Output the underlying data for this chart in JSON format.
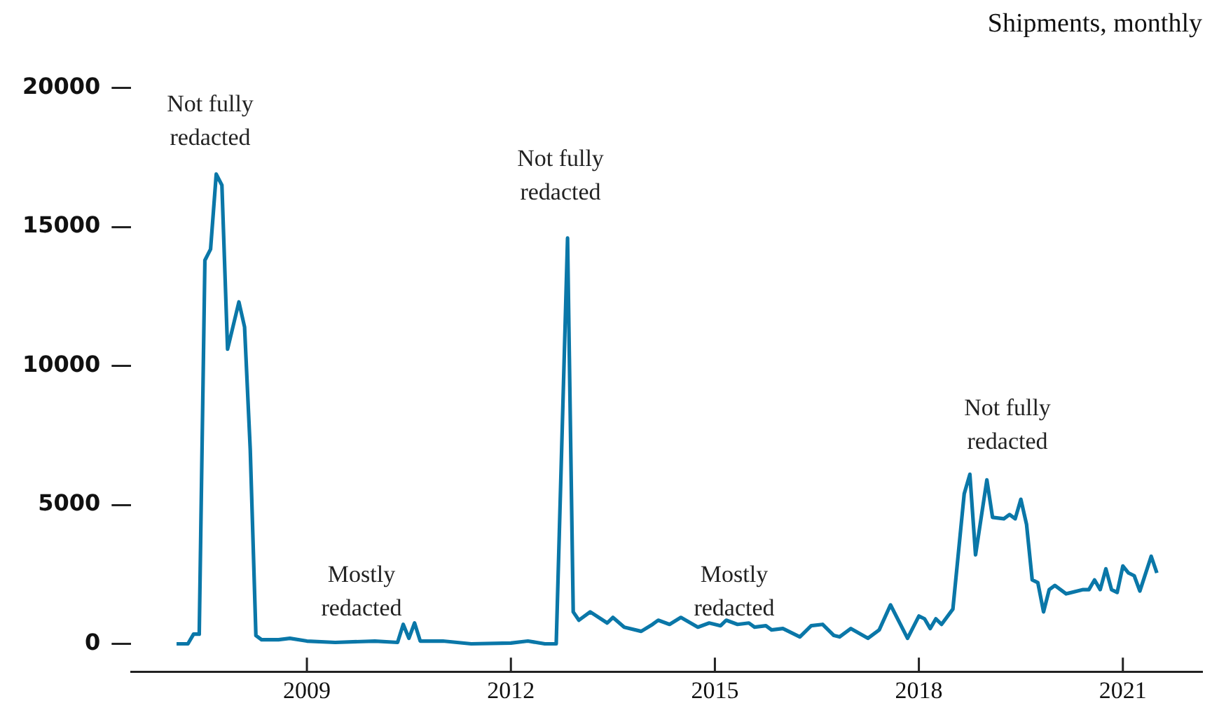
{
  "chart_data": {
    "type": "line",
    "title": "Shipments, monthly",
    "x": [
      "2007-02",
      "2007-04",
      "2007-05",
      "2007-06",
      "2007-07",
      "2007-08",
      "2007-09",
      "2007-10",
      "2007-11",
      "2008-01",
      "2008-02",
      "2008-03",
      "2008-04",
      "2008-05",
      "2008-08",
      "2008-10",
      "2009-01",
      "2009-06",
      "2010-01",
      "2010-05",
      "2010-06",
      "2010-07",
      "2010-08",
      "2010-09",
      "2011-01",
      "2011-06",
      "2012-01",
      "2012-04",
      "2012-07",
      "2012-09",
      "2012-11",
      "2012-12",
      "2013-01",
      "2013-03",
      "2013-06",
      "2013-07",
      "2013-09",
      "2013-12",
      "2014-02",
      "2014-03",
      "2014-05",
      "2014-07",
      "2014-10",
      "2014-12",
      "2015-02",
      "2015-03",
      "2015-05",
      "2015-07",
      "2015-08",
      "2015-10",
      "2015-11",
      "2016-01",
      "2016-04",
      "2016-06",
      "2016-08",
      "2016-10",
      "2016-11",
      "2017-01",
      "2017-04",
      "2017-06",
      "2017-08",
      "2017-11",
      "2018-01",
      "2018-02",
      "2018-03",
      "2018-04",
      "2018-05",
      "2018-07",
      "2018-09",
      "2018-10",
      "2018-11",
      "2019-01",
      "2019-02",
      "2019-04",
      "2019-05",
      "2019-06",
      "2019-07",
      "2019-08",
      "2019-09",
      "2019-10",
      "2019-11",
      "2019-12",
      "2020-01",
      "2020-03",
      "2020-06",
      "2020-07",
      "2020-08",
      "2020-09",
      "2020-10",
      "2020-11",
      "2020-12",
      "2021-01",
      "2021-02",
      "2021-03",
      "2021-04",
      "2021-06",
      "2021-07"
    ],
    "series": [
      {
        "color": "#0a77a8",
        "values": [
          0,
          0,
          350,
          350,
          13800,
          14200,
          16900,
          16500,
          10600,
          12300,
          11400,
          7000,
          300,
          150,
          150,
          200,
          100,
          50,
          100,
          50,
          700,
          200,
          750,
          100,
          100,
          0,
          30,
          100,
          0,
          0,
          14600,
          1150,
          850,
          1150,
          750,
          950,
          600,
          450,
          700,
          850,
          700,
          950,
          600,
          750,
          650,
          850,
          700,
          750,
          600,
          650,
          500,
          550,
          250,
          650,
          700,
          300,
          250,
          550,
          200,
          500,
          1400,
          200,
          1000,
          900,
          550,
          900,
          700,
          1250,
          5400,
          6100,
          3200,
          5900,
          4550,
          4500,
          4650,
          4500,
          5200,
          4300,
          2300,
          2200,
          1150,
          1950,
          2100,
          1800,
          1950,
          1950,
          2300,
          1950,
          2700,
          1950,
          1850,
          2800,
          2550,
          2450,
          1900,
          3150,
          2550
        ]
      }
    ],
    "xlim": [
      "2006-06",
      "2022-03"
    ],
    "xticks": [
      "2009",
      "2012",
      "2015",
      "2018",
      "2021"
    ],
    "ylim": [
      -1000,
      20000
    ],
    "yticks": [
      0,
      5000,
      10000,
      15000,
      20000
    ],
    "grid": false,
    "legend": false,
    "marker": "none",
    "line_style": "solid",
    "annotations": [
      "Not fully redacted",
      "Not fully redacted",
      "Not fully redacted",
      "Mostly redacted",
      "Mostly redacted"
    ]
  }
}
